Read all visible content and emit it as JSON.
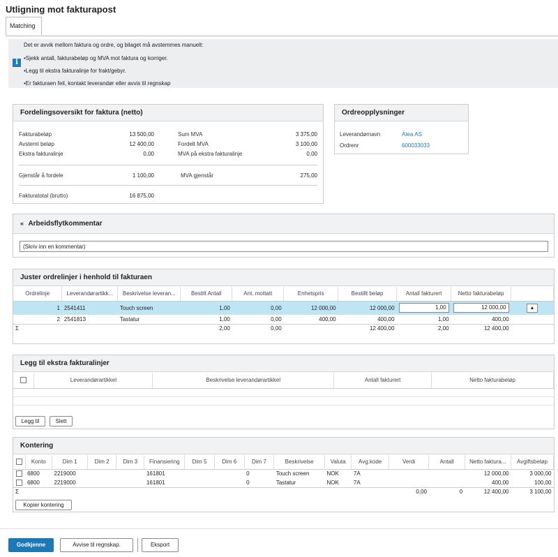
{
  "page_title": "Utligning mot fakturapost",
  "tab_matching": "Matching",
  "info": {
    "line1": "Det er avvik mellom faktura og ordre, og bilaget må avstemmes manuelt:",
    "line2": "•Sjekk antall, fakturabeløp og MVA mot faktura og korriger.",
    "line3": "•Legg til ekstra fakturalinje for frakt/gebyr.",
    "line4": "•Er fakturaen feil, kontakt leverandør eller avvis til regnskap"
  },
  "distribution": {
    "title": "Fordelingsoversikt for faktura (netto)",
    "fakturabelop_label": "Fakturabeløp",
    "fakturabelop_value": "13 500,00",
    "avstemt_label": "Avstemt beløp",
    "avstemt_value": "12 400,00",
    "ekstra_label": "Ekstra fakturalinje",
    "ekstra_value": "0,00",
    "sum_mva_label": "Sum MVA",
    "sum_mva_value": "3 375,00",
    "fordelt_mva_label": "Fordelt MVA",
    "fordelt_mva_value": "3 100,00",
    "mva_ekstra_label": "MVA på ekstra fakturalinje",
    "mva_ekstra_value": "0,00",
    "gjenstar_label": "Gjenstår å fordele",
    "gjenstar_value": "1 100,00",
    "mva_gjenstar_label": "MVA gjenstår",
    "mva_gjenstar_value": "275,00",
    "total_label": "Fakturatotal (brutto)",
    "total_value": "16 875,00"
  },
  "order_info": {
    "title": "Ordreopplysninger",
    "supplier_label": "Leverandørnavn",
    "supplier_value": "Atea AS",
    "order_label": "Ordrenr",
    "order_value": "600033033"
  },
  "workflow": {
    "title": "Arbeidsflytkommentar",
    "comment_placeholder": "(Skriv inn en kommentar)"
  },
  "adjust": {
    "title": "Juster ordrelinjer i henhold til fakturaen",
    "headers": [
      "Ordrelinje",
      "Leverandørartikk...",
      "Beskrivelse leveran...",
      "Bestilt Antall",
      "Ant. mottatt",
      "Enhetspris",
      "Bestillt beløp",
      "Antall fakturert",
      "Netto fakturabeløp"
    ],
    "rows": [
      {
        "line": "1",
        "article": "2541411",
        "desc": "Touch screen",
        "ordered": "1,00",
        "received": "0,00",
        "price": "12 000,00",
        "amount": "12 000,00",
        "invoiced": "1,00",
        "net": "12 000,00"
      },
      {
        "line": "2",
        "article": "2541813",
        "desc": "Tastatur",
        "ordered": "1,00",
        "received": "0,00",
        "price": "400,00",
        "amount": "400,00",
        "invoiced": "1,00",
        "net": "400,00"
      }
    ],
    "sum": {
      "symbol": "Σ",
      "ordered": "2,00",
      "received": "0,00",
      "amount": "12 400,00",
      "invoiced": "2,00",
      "net": "12 400,00"
    }
  },
  "extra": {
    "title": "Legg til ekstra fakturalinjer",
    "headers": [
      "Leverandørartikkel",
      "Beskrivelse leverandørartikkel",
      "Antall fakturert",
      "Netto fakturabeløp"
    ],
    "add_label": "Legg til",
    "delete_label": "Slett"
  },
  "posting": {
    "title": "Kontering",
    "headers": [
      "Konto",
      "Dim 1",
      "Dim 2",
      "Dim 3",
      "Finansiering",
      "Dim 5",
      "Dim 6",
      "Dim 7",
      "Beskrivelse",
      "Valuta",
      "Avg.kode",
      "Verdi",
      "Antall",
      "Netto faktura...",
      "Avgiftsbeløp"
    ],
    "rows": [
      {
        "konto": "6800",
        "dim1": "2219000",
        "fin": "161801",
        "dim7": "0",
        "desc": "Touch screen",
        "valuta": "NOK",
        "avg": "7A",
        "netto": "12 000,00",
        "avgift": "3 000,00"
      },
      {
        "konto": "6800",
        "dim1": "2219000",
        "fin": "161801",
        "dim7": "0",
        "desc": "Tastatur",
        "valuta": "NOK",
        "avg": "7A",
        "netto": "400,00",
        "avgift": "100,00"
      }
    ],
    "sum": {
      "symbol": "Σ",
      "verdi": "0,00",
      "antall": "0",
      "netto": "12 400,00",
      "avgift": "3 100,00"
    },
    "copy_label": "Kopier kontering"
  },
  "footer": {
    "approve": "Godkjenne",
    "reject": "Avvise til regnskap.",
    "export": "Eksport"
  }
}
